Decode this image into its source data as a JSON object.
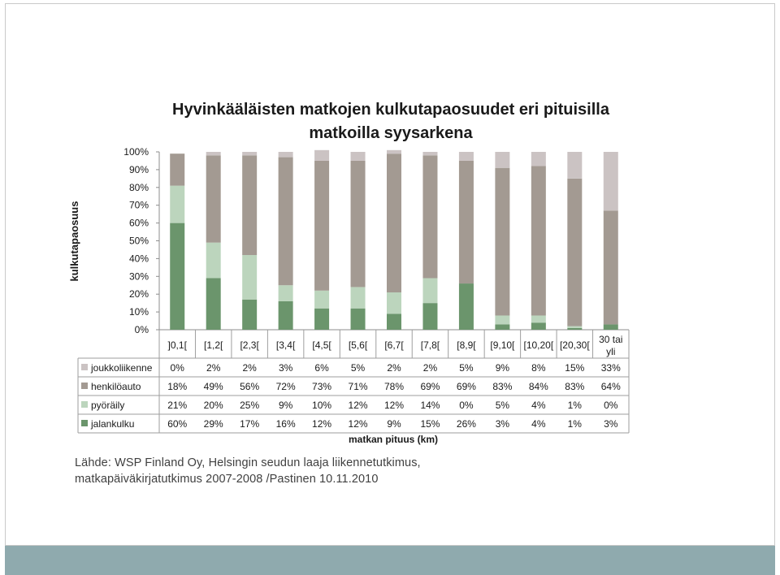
{
  "colors": {
    "joukkoliikenne": "#cbc3c3",
    "henkiloauto": "#a39a92",
    "pyoraily": "#bcd5bd",
    "jalankulku": "#6b956c",
    "footer": "#8faaae"
  },
  "chart_data": {
    "type": "bar",
    "stacked": true,
    "title_line1": "Hyvinkääläisten matkojen kulkutapaosuudet eri pituisilla",
    "title_line2": "matkoilla syysarkena",
    "ylabel": "kulkutapaosuus",
    "xlabel": "matkan pituus (km)",
    "ylim": [
      0,
      100
    ],
    "yticks": [
      "0%",
      "10%",
      "20%",
      "30%",
      "40%",
      "50%",
      "60%",
      "70%",
      "80%",
      "90%",
      "100%"
    ],
    "categories": [
      "]0,1[",
      "[1,2[",
      "[2,3[",
      "[3,4[",
      "[4,5[",
      "[5,6[",
      "[6,7[",
      "[7,8[",
      "[8,9[",
      "[9,10[",
      "[10,20[",
      "[20,30[",
      "30 tai yli"
    ],
    "series": [
      {
        "name": "joukkoliikenne",
        "color_key": "joukkoliikenne",
        "values": [
          0,
          2,
          2,
          3,
          6,
          5,
          2,
          2,
          5,
          9,
          8,
          15,
          33
        ],
        "labels": [
          "0%",
          "2%",
          "2%",
          "3%",
          "6%",
          "5%",
          "2%",
          "2%",
          "5%",
          "9%",
          "8%",
          "15%",
          "33%"
        ]
      },
      {
        "name": "henkilöauto",
        "color_key": "henkiloauto",
        "values": [
          18,
          49,
          56,
          72,
          73,
          71,
          78,
          69,
          69,
          83,
          84,
          83,
          64
        ],
        "labels": [
          "18%",
          "49%",
          "56%",
          "72%",
          "73%",
          "71%",
          "78%",
          "69%",
          "69%",
          "83%",
          "84%",
          "83%",
          "64%"
        ]
      },
      {
        "name": "pyöräily",
        "color_key": "pyoraily",
        "values": [
          21,
          20,
          25,
          9,
          10,
          12,
          12,
          14,
          0,
          5,
          4,
          1,
          0
        ],
        "labels": [
          "21%",
          "20%",
          "25%",
          "9%",
          "10%",
          "12%",
          "12%",
          "14%",
          "0%",
          "5%",
          "4%",
          "1%",
          "0%"
        ]
      },
      {
        "name": "jalankulku",
        "color_key": "jalankulku",
        "values": [
          60,
          29,
          17,
          16,
          12,
          12,
          9,
          15,
          26,
          3,
          4,
          1,
          3
        ],
        "labels": [
          "60%",
          "29%",
          "17%",
          "16%",
          "12%",
          "12%",
          "9%",
          "15%",
          "26%",
          "3%",
          "4%",
          "1%",
          "3%"
        ]
      }
    ],
    "stack_order_bottom_to_top": [
      "jalankulku",
      "pyöräily",
      "henkilöauto",
      "joukkoliikenne"
    ],
    "data_table": true
  },
  "source": {
    "line1": "Lähde: WSP Finland Oy, Helsingin seudun laaja liikennetutkimus,",
    "line2": "matkapäiväkirjatutkimus 2007-2008 /Pastinen 10.11.2010"
  }
}
